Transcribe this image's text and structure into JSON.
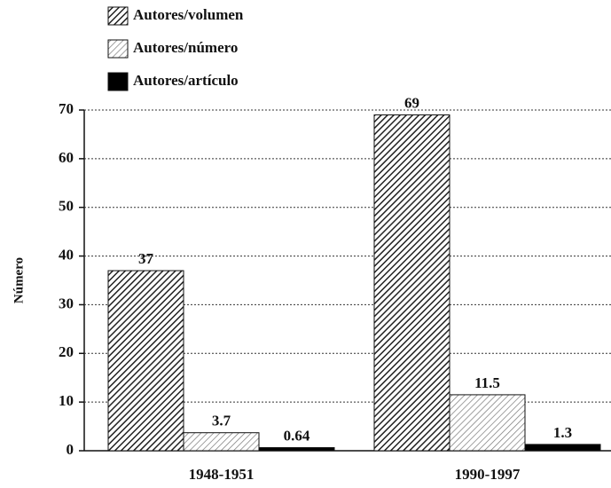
{
  "chart_data": {
    "type": "bar",
    "y_label": "Número",
    "categories": [
      "1948-1951",
      "1990-1997"
    ],
    "series": [
      {
        "name": "Autores/volumen",
        "color": "#222222",
        "hatch": "dense",
        "values": [
          37,
          69
        ]
      },
      {
        "name": "Autores/número",
        "color": "#777777",
        "hatch": "light",
        "values": [
          3.7,
          11.5
        ]
      },
      {
        "name": "Autores/artículo",
        "color": "#000000",
        "hatch": "none",
        "values": [
          0.64,
          1.3
        ]
      }
    ],
    "ylim": [
      0,
      70
    ],
    "yticks": [
      0,
      10,
      20,
      30,
      40,
      50,
      60,
      70
    ],
    "grid": true,
    "legend": "top-left"
  }
}
